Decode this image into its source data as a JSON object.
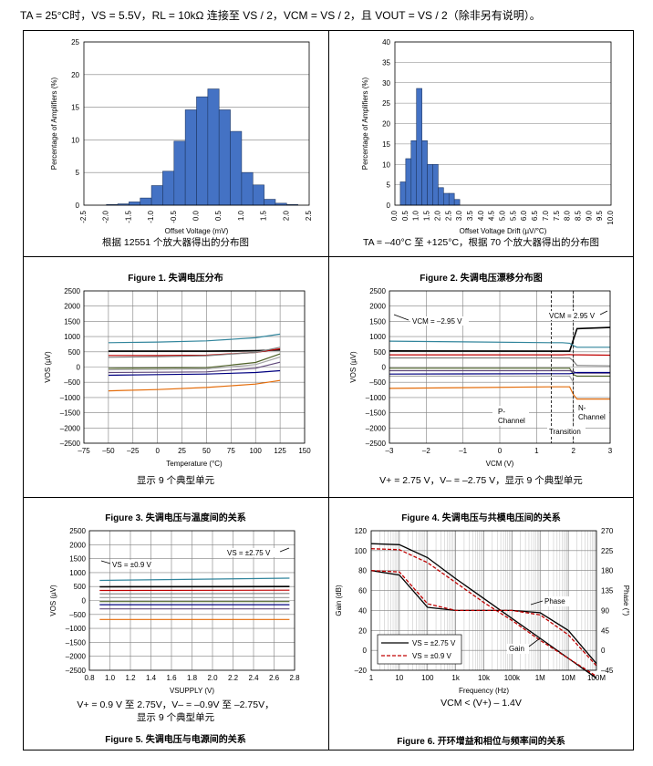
{
  "header": {
    "text": "TA = 25°C时，VS = 5.5V，RL = 10kΩ 连接至 VS / 2，VCM = VS / 2，且 VOUT = VS / 2（除非另有说明）。"
  },
  "figures": [
    {
      "title": "Figure 1. 失调电压分布",
      "caption": [
        "根据 12551 个放大器得出的分布图"
      ]
    },
    {
      "title": "Figure 2. 失调电压漂移分布图",
      "caption": [
        "TA = –40°C 至 +125°C，根据 70 个放大器得出的分布图"
      ]
    },
    {
      "title": "Figure 3. 失调电压与温度间的关系",
      "caption": [
        "显示 9 个典型单元"
      ]
    },
    {
      "title": "Figure 4. 失调电压与共模电压间的关系",
      "caption": [
        "V+ = 2.75 V，V– = –2.75 V，显示 9 个典型单元"
      ]
    },
    {
      "title": "Figure 5. 失调电压与电源间的关系",
      "caption": [
        "V+ = 0.9 V 至 2.75V，V– = –0.9V 至 –2.75V，",
        "显示 9 个典型单元"
      ]
    },
    {
      "title": "Figure 6. 开环增益和相位与频率间的关系",
      "caption": [
        "VCM < (V+) – 1.4V"
      ]
    }
  ],
  "colors": {
    "bar": "#4472c4",
    "bar_edge": "#1f3864",
    "grid": "#808080"
  },
  "chart_data": [
    {
      "type": "bar",
      "categories": [
        "-2.5",
        "-2.25",
        "-2",
        "-1.75",
        "-1.5",
        "-1.25",
        "-1",
        "-0.75",
        "-0.5",
        "-0.25",
        "0",
        "0.25",
        "0.5",
        "0.75",
        "1",
        "1.25",
        "1.5",
        "1.75",
        "2",
        "2.25"
      ],
      "values": [
        0,
        0,
        0.1,
        0.2,
        0.5,
        1.1,
        3.0,
        5.2,
        9.8,
        14.6,
        16.6,
        17.8,
        14.6,
        11.3,
        5.0,
        3.1,
        0.9,
        0.3,
        0.1,
        0
      ],
      "xlim": [
        -2.5,
        2.5
      ],
      "xticks": [
        "-2.5",
        "-2.0",
        "-1.5",
        "-1.0",
        "-0.5",
        "0.0",
        "0.5",
        "1.0",
        "1.5",
        "2.0",
        "2.5"
      ],
      "ylim": [
        0,
        25
      ],
      "yticks": [
        "0",
        "5",
        "10",
        "15",
        "20",
        "25"
      ],
      "xlabel": "Offset Voltage (mV)",
      "ylabel": "Percentage of Amplifiers (%)"
    },
    {
      "type": "bar",
      "categories": [
        "0",
        "0.25",
        "0.5",
        "0.75",
        "1",
        "1.25",
        "1.5",
        "1.75",
        "2",
        "2.25",
        "2.5",
        "2.75",
        "3",
        "3.25",
        "3.5",
        "3.75"
      ],
      "values": [
        0,
        5.7,
        11.4,
        15.8,
        28.6,
        15.8,
        10.0,
        10.0,
        4.3,
        2.9,
        2.9,
        1.4,
        0,
        0,
        0,
        0
      ],
      "xlim": [
        0,
        10
      ],
      "xticks": [
        "0.0",
        "0.5",
        "1.0",
        "1.5",
        "2.0",
        "2.5",
        "3.0",
        "3.5",
        "4.0",
        "4.5",
        "5.0",
        "5.5",
        "6.0",
        "6.5",
        "7.0",
        "7.5",
        "8.0",
        "8.5",
        "9.0",
        "9.5",
        "10.0"
      ],
      "ylim": [
        0,
        40
      ],
      "yticks": [
        "0",
        "5",
        "10",
        "15",
        "20",
        "25",
        "30",
        "35",
        "40"
      ],
      "xlabel": "Offset Voltage Drift (µV/°C)",
      "ylabel": "Percentage of Amplifiers (%)"
    },
    {
      "type": "line",
      "x": [
        -50,
        0,
        50,
        100,
        125
      ],
      "series": [
        {
          "name": "u1",
          "color": "#31859c",
          "values": [
            800,
            820,
            860,
            960,
            1080
          ]
        },
        {
          "name": "u2",
          "color": "#000000",
          "values": [
            520,
            520,
            520,
            540,
            560
          ]
        },
        {
          "name": "u3",
          "color": "#c00000",
          "values": [
            380,
            380,
            390,
            480,
            600
          ]
        },
        {
          "name": "u4",
          "color": "#7f7f7f",
          "values": [
            320,
            340,
            370,
            480,
            650
          ]
        },
        {
          "name": "u5",
          "color": "#4f6228",
          "values": [
            -40,
            -30,
            -20,
            150,
            430
          ]
        },
        {
          "name": "u6",
          "color": "#a6a6a6",
          "values": [
            -90,
            -80,
            -60,
            80,
            330
          ]
        },
        {
          "name": "u7",
          "color": "#60497a",
          "values": [
            -180,
            -170,
            -160,
            -40,
            160
          ]
        },
        {
          "name": "u8",
          "color": "#000080",
          "values": [
            -270,
            -250,
            -230,
            -180,
            -120
          ]
        },
        {
          "name": "u9",
          "color": "#e46c0a",
          "values": [
            -780,
            -740,
            -670,
            -560,
            -440
          ]
        }
      ],
      "xlim": [
        -75,
        150
      ],
      "xticks": [
        "–75",
        "–50",
        "–25",
        "0",
        "25",
        "50",
        "75",
        "100",
        "125",
        "150"
      ],
      "ylim": [
        -2500,
        2500
      ],
      "yticks": [
        "2500",
        "2000",
        "1500",
        "1000",
        "500",
        "0",
        "–500",
        "–1000",
        "–1500",
        "–2000",
        "–2500"
      ],
      "xlabel": "Temperature (°C)",
      "ylabel": "VOS (µV)"
    },
    {
      "type": "line",
      "x": [
        -3,
        1.4,
        1.7,
        1.9,
        2.0,
        2.1,
        3
      ],
      "series": [
        {
          "name": "u1",
          "color": "#000000",
          "values": [
            530,
            520,
            520,
            520,
            900,
            1260,
            1300
          ]
        },
        {
          "name": "u2",
          "color": "#31859c",
          "values": [
            850,
            800,
            800,
            780,
            700,
            650,
            650
          ]
        },
        {
          "name": "u3",
          "color": "#c00000",
          "values": [
            400,
            400,
            400,
            410,
            400,
            400,
            390
          ]
        },
        {
          "name": "u4",
          "color": "#7f7f7f",
          "values": [
            300,
            300,
            300,
            300,
            200,
            50,
            40
          ]
        },
        {
          "name": "u5",
          "color": "#4f6228",
          "values": [
            -40,
            -40,
            -40,
            -40,
            -250,
            -300,
            -300
          ]
        },
        {
          "name": "u6",
          "color": "#60497a",
          "values": [
            -120,
            -120,
            -120,
            -120,
            -150,
            -200,
            -200
          ]
        },
        {
          "name": "u7",
          "color": "#000080",
          "values": [
            -230,
            -220,
            -220,
            -220,
            -200,
            -180,
            -180
          ]
        },
        {
          "name": "u8",
          "color": "#a6a6a6",
          "values": [
            -300,
            -300,
            -300,
            -300,
            -500,
            -500,
            -500
          ]
        },
        {
          "name": "u9",
          "color": "#e46c0a",
          "values": [
            -700,
            -650,
            -650,
            -650,
            -900,
            -1050,
            -1050
          ]
        }
      ],
      "xlim": [
        -3,
        3
      ],
      "xticks": [
        "–3",
        "–2",
        "–1",
        "0",
        "1",
        "2",
        "3"
      ],
      "ylim": [
        -2500,
        2500
      ],
      "yticks": [
        "2500",
        "2000",
        "1500",
        "1000",
        "500",
        "0",
        "–500",
        "–1000",
        "–1500",
        "–2000",
        "–2500"
      ],
      "xlabel": "VCM (V)",
      "ylabel": "VOS (µV)",
      "annotations": [
        "VCM = –2.95 V",
        "VCM = 2.95 V",
        "P-",
        "Channel",
        "N-",
        "Channel",
        "Transition"
      ]
    },
    {
      "type": "line",
      "x": [
        0.9,
        2.75
      ],
      "series": [
        {
          "name": "u1",
          "color": "#31859c",
          "values": [
            720,
            800
          ]
        },
        {
          "name": "u2",
          "color": "#000000",
          "values": [
            490,
            500
          ]
        },
        {
          "name": "u3",
          "color": "#c00000",
          "values": [
            360,
            370
          ]
        },
        {
          "name": "u4",
          "color": "#7f7f7f",
          "values": [
            240,
            250
          ]
        },
        {
          "name": "u5",
          "color": "#a6a6a6",
          "values": [
            100,
            100
          ]
        },
        {
          "name": "u6",
          "color": "#4f6228",
          "values": [
            -40,
            -40
          ]
        },
        {
          "name": "u7",
          "color": "#000080",
          "values": [
            -150,
            -150
          ]
        },
        {
          "name": "u8",
          "color": "#60497a",
          "values": [
            -300,
            -300
          ]
        },
        {
          "name": "u9",
          "color": "#e46c0a",
          "values": [
            -680,
            -680
          ]
        }
      ],
      "xlim": [
        0.8,
        2.8
      ],
      "xticks": [
        "0.8",
        "1.0",
        "1.2",
        "1.4",
        "1.6",
        "1.8",
        "2.0",
        "2.2",
        "2.4",
        "2.6",
        "2.8"
      ],
      "ylim": [
        -2500,
        2500
      ],
      "yticks": [
        "2500",
        "2000",
        "1500",
        "1000",
        "500",
        "0",
        "–500",
        "–1000",
        "–1500",
        "–2000",
        "–2500"
      ],
      "xlabel": "VSUPPLY (V)",
      "ylabel": "VOS (µV)",
      "annotations": [
        "VS = ±0.9 V",
        "VS = ±2.75 V"
      ]
    },
    {
      "type": "line",
      "x_log": [
        1,
        10,
        100,
        1000,
        10000,
        100000,
        1000000,
        10000000,
        100000000
      ],
      "series": [
        {
          "name": "Gain VS = ±2.75 V",
          "color": "#000000",
          "dash": false,
          "axis": "left",
          "values": [
            107,
            106,
            93,
            72,
            52,
            32,
            12,
            -8,
            -28
          ]
        },
        {
          "name": "Gain VS = ±0.9 V",
          "color": "#c00000",
          "dash": true,
          "axis": "left",
          "values": [
            102,
            101,
            88,
            68,
            48,
            30,
            10,
            -8,
            -26
          ]
        },
        {
          "name": "Phase VS = ±2.75 V",
          "color": "#000000",
          "dash": false,
          "axis": "right",
          "values": [
            180,
            170,
            97,
            90,
            90,
            90,
            85,
            45,
            -30
          ]
        },
        {
          "name": "Phase VS = ±0.9 V",
          "color": "#c00000",
          "dash": true,
          "axis": "right",
          "values": [
            180,
            177,
            105,
            90,
            90,
            90,
            80,
            35,
            -35
          ]
        }
      ],
      "xlim": [
        1,
        100000000
      ],
      "xticks": [
        "1",
        "10",
        "100",
        "1k",
        "10k",
        "100k",
        "1M",
        "10M",
        "100M"
      ],
      "ylim_left": [
        -20,
        120
      ],
      "yticks_left": [
        "120",
        "100",
        "80",
        "60",
        "40",
        "20",
        "0",
        "–20"
      ],
      "ylim_right": [
        -45,
        270
      ],
      "yticks_right": [
        "270",
        "225",
        "180",
        "135",
        "90",
        "45",
        "0",
        "–45"
      ],
      "xlabel": "Frequency (Hz)",
      "ylabel": "Gain (dB)",
      "y2label": "Phase (°)",
      "annotations": [
        "Phase",
        "Gain"
      ],
      "legend": [
        "VS = ±2.75 V",
        "VS = ±0.9 V"
      ]
    }
  ]
}
